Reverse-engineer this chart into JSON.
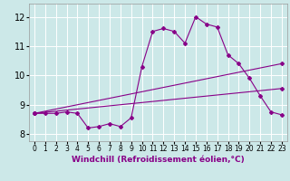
{
  "xlabel": "Windchill (Refroidissement éolien,°C)",
  "bg_color": "#cce8e8",
  "line_color": "#880088",
  "grid_color": "#ffffff",
  "xlim": [
    -0.5,
    23.5
  ],
  "ylim": [
    7.75,
    12.45
  ],
  "yticks": [
    8,
    9,
    10,
    11,
    12
  ],
  "xticks": [
    0,
    1,
    2,
    3,
    4,
    5,
    6,
    7,
    8,
    9,
    10,
    11,
    12,
    13,
    14,
    15,
    16,
    17,
    18,
    19,
    20,
    21,
    22,
    23
  ],
  "xtick_labels": [
    "0",
    "1",
    "2",
    "3",
    "4",
    "5",
    "6",
    "7",
    "8",
    "9",
    "10",
    "11",
    "12",
    "13",
    "14",
    "15",
    "16",
    "17",
    "18",
    "19",
    "20",
    "21",
    "22",
    "23"
  ],
  "line1_x": [
    0,
    1,
    2,
    3,
    4,
    5,
    6,
    7,
    8,
    9,
    10,
    11,
    12,
    13,
    14,
    15,
    16,
    17,
    18,
    19,
    20,
    21,
    22,
    23
  ],
  "line1_y": [
    8.7,
    8.7,
    8.7,
    8.75,
    8.7,
    8.2,
    8.25,
    8.35,
    8.25,
    8.55,
    10.3,
    11.5,
    11.6,
    11.5,
    11.1,
    12.0,
    11.75,
    11.65,
    10.7,
    10.4,
    9.9,
    9.3,
    8.75,
    8.65
  ],
  "line2_x": [
    0,
    23
  ],
  "line2_y": [
    8.7,
    9.55
  ],
  "line3_x": [
    0,
    23
  ],
  "line3_y": [
    8.7,
    10.4
  ],
  "fontsize_label": 6.5,
  "fontsize_tick": 5.5,
  "marker_size": 2.0,
  "linewidth": 0.8
}
